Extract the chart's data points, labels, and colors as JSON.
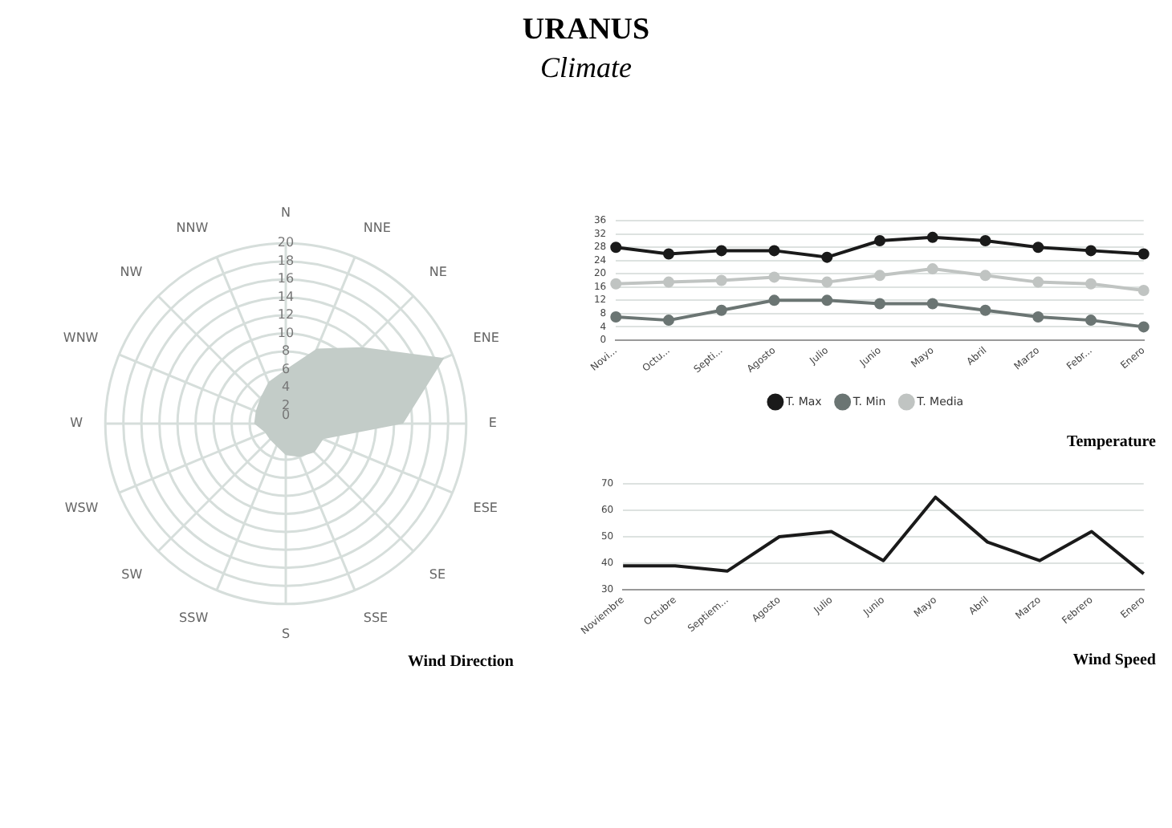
{
  "chart_data": [
    {
      "type": "radar",
      "title": "URANUS",
      "subtitle": "Climate",
      "annotations": [
        "Wind Direction"
      ],
      "categories": [
        "N",
        "NNE",
        "NE",
        "ENE",
        "E",
        "ESE",
        "SE",
        "SSE",
        "S",
        "SSW",
        "SW",
        "WSW",
        "W",
        "WNW",
        "NW",
        "NNW"
      ],
      "series": [
        {
          "color": "#c3ccc8",
          "values": [
            6,
            9,
            12,
            19,
            13,
            4.5,
            4.5,
            4,
            3.5,
            2.7,
            2.5,
            2.5,
            3.5,
            3.6,
            4,
            5
          ]
        }
      ],
      "ylim": [
        0,
        20
      ],
      "yticks": [
        0,
        2,
        4,
        6,
        8,
        10,
        12,
        14,
        16,
        18,
        20
      ],
      "grid": true
    },
    {
      "type": "line",
      "annotations": [
        "Temperature"
      ],
      "categories": [
        "Novi...",
        "Octu...",
        "Septi...",
        "Agosto",
        "Julio",
        "Junio",
        "Mayo",
        "Abril",
        "Marzo",
        "Febr...",
        "Enero"
      ],
      "series": [
        {
          "name": "T. Max",
          "color": "#1a1a1a",
          "values": [
            28,
            26,
            27,
            27,
            25,
            30,
            31,
            30,
            28,
            27,
            26
          ]
        },
        {
          "name": "T. Min",
          "color": "#6b7573",
          "values": [
            7,
            6,
            9,
            12,
            12,
            11,
            11,
            9,
            7,
            6,
            4
          ]
        },
        {
          "name": "T. Media",
          "color": "#c0c4c2",
          "values": [
            17,
            17.5,
            18,
            19,
            17.5,
            19.5,
            21.5,
            19.5,
            17.5,
            17,
            15
          ]
        }
      ],
      "ylim": [
        0,
        36
      ],
      "yticks": [
        0,
        4,
        8,
        12,
        16,
        20,
        24,
        28,
        32,
        36
      ],
      "grid": "y",
      "legend": "bottom",
      "marker": "circle"
    },
    {
      "type": "line",
      "annotations": [
        "Wind Speed"
      ],
      "categories": [
        "Noviembre",
        "Octubre",
        "Septiem...",
        "Agosto",
        "Julio",
        "Junio",
        "Mayo",
        "Abril",
        "Marzo",
        "Febrero",
        "Enero"
      ],
      "series": [
        {
          "color": "#1a1a1a",
          "values": [
            39,
            39,
            37,
            50,
            52,
            41,
            65,
            48,
            41,
            52,
            36
          ]
        }
      ],
      "ylim": [
        30,
        70
      ],
      "yticks": [
        30,
        40,
        50,
        60,
        70
      ],
      "grid": "y"
    }
  ]
}
